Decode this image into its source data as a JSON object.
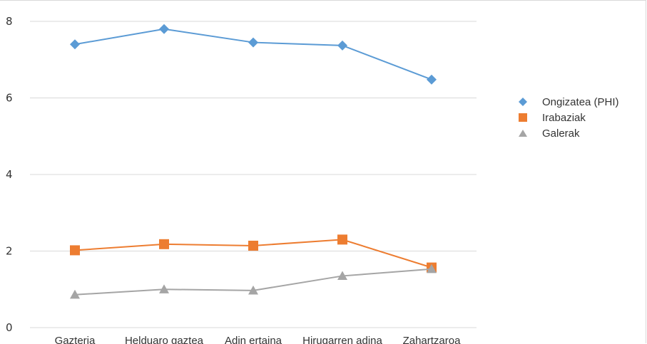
{
  "chart_data": {
    "type": "line",
    "title": "",
    "xlabel": "",
    "ylabel": "",
    "categories": [
      "Gazteria",
      "Helduaro gaztea",
      "Adin ertaina",
      "Hirugarren adina",
      "Zahartzaroa"
    ],
    "ylim": [
      0,
      8
    ],
    "yticks": [
      "0",
      "2",
      "4",
      "6",
      "8"
    ],
    "grid": true,
    "legend_position": "right",
    "series": [
      {
        "name": "Ongizatea (PHI)",
        "values": [
          7.4,
          7.8,
          7.45,
          7.37,
          6.48
        ],
        "color": "#5b9bd5",
        "marker": "diamond"
      },
      {
        "name": "Irabaziak",
        "values": [
          2.02,
          2.18,
          2.14,
          2.3,
          1.57
        ],
        "color": "#ed7d31",
        "marker": "square"
      },
      {
        "name": "Galerak",
        "values": [
          0.86,
          1.0,
          0.97,
          1.35,
          1.53
        ],
        "color": "#a5a5a5",
        "marker": "triangle"
      }
    ]
  }
}
